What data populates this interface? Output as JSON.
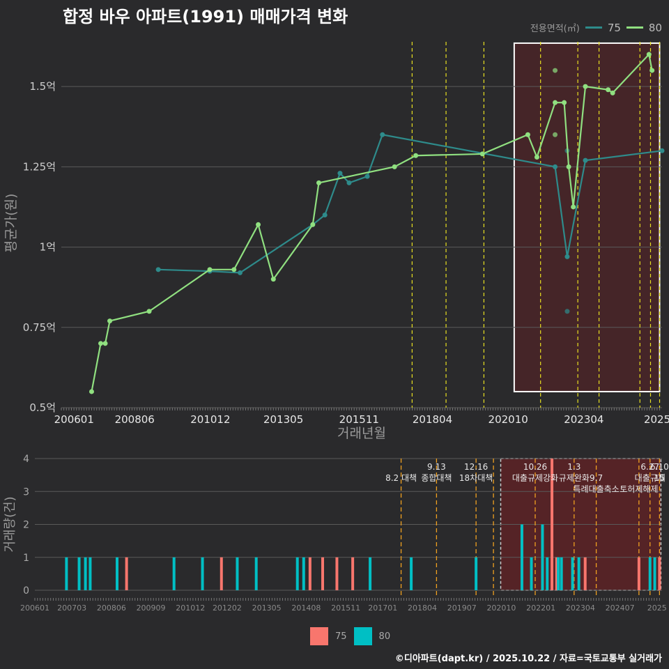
{
  "title": "합정 바우 아파트(1991) 매매가격 변화",
  "source": "©디아파트(dapt.kr) / 2025.10.22 / 자료=국토교통부 실거래가",
  "legend": {
    "title": "전용면적(㎡)",
    "items": [
      {
        "label": "75",
        "color": "#2e8b8b"
      },
      {
        "label": "80",
        "color": "#90e080"
      }
    ],
    "bar_items": [
      {
        "label": "75",
        "color": "#f8766d"
      },
      {
        "label": "80",
        "color": "#00bfc4"
      }
    ]
  },
  "chart_data": [
    {
      "type": "line",
      "title": "합정 바우 아파트(1991) 매매가격 변화",
      "xlabel": "거래년월",
      "ylabel": "평균가(원)",
      "xlim": [
        2006.0,
        2025.83
      ],
      "ylim": [
        0.5,
        1.65
      ],
      "yticks": [
        0.5,
        0.75,
        1.0,
        1.25,
        1.5
      ],
      "ytick_labels": [
        "0.5억",
        "0.75억",
        "1억",
        "1.25억",
        "1.5억"
      ],
      "xticks": [
        2006.42,
        2008.42,
        2010.92,
        2013.33,
        2015.83,
        2018.25,
        2020.75,
        2023.25,
        2025.67
      ],
      "xtick_labels": [
        "200601",
        "200806",
        "201012",
        "201305",
        "201511",
        "201804",
        "202010",
        "202304",
        "2025"
      ],
      "series": [
        {
          "name": "75",
          "color": "#2e8b8b",
          "points": [
            [
              2009.2,
              0.93
            ],
            [
              2010.9,
              0.925
            ],
            [
              2011.9,
              0.92
            ],
            [
              2014.3,
              1.07
            ],
            [
              2014.7,
              1.1
            ],
            [
              2015.2,
              1.23
            ],
            [
              2015.5,
              1.2
            ],
            [
              2016.1,
              1.22
            ],
            [
              2016.6,
              1.35
            ],
            [
              2022.3,
              1.25
            ],
            [
              2022.7,
              0.97
            ],
            [
              2023.3,
              1.27
            ],
            [
              2025.83,
              1.3
            ]
          ],
          "scatter": [
            [
              2022.7,
              1.3
            ],
            [
              2022.7,
              0.8
            ]
          ]
        },
        {
          "name": "80",
          "color": "#90e080",
          "points": [
            [
              2007.0,
              0.55
            ],
            [
              2007.3,
              0.7
            ],
            [
              2007.45,
              0.7
            ],
            [
              2007.6,
              0.77
            ],
            [
              2008.9,
              0.8
            ],
            [
              2010.9,
              0.93
            ],
            [
              2011.7,
              0.93
            ],
            [
              2012.5,
              1.07
            ],
            [
              2013.0,
              0.9
            ],
            [
              2014.3,
              1.07
            ],
            [
              2014.5,
              1.2
            ],
            [
              2017.0,
              1.25
            ],
            [
              2017.7,
              1.285
            ],
            [
              2019.9,
              1.29
            ],
            [
              2021.4,
              1.35
            ],
            [
              2021.7,
              1.28
            ],
            [
              2022.3,
              1.45
            ],
            [
              2022.6,
              1.45
            ],
            [
              2022.75,
              1.25
            ],
            [
              2022.9,
              1.125
            ],
            [
              2023.3,
              1.5
            ],
            [
              2024.05,
              1.49
            ],
            [
              2024.2,
              1.48
            ],
            [
              2025.4,
              1.6
            ],
            [
              2025.5,
              1.55
            ]
          ],
          "scatter": [
            [
              2022.3,
              1.55
            ],
            [
              2022.3,
              1.35
            ]
          ]
        }
      ],
      "policy_lines": [
        2017.58,
        2018.7,
        2019.95,
        2021.82,
        2023.05,
        2023.75,
        2025.1,
        2025.45,
        2025.75
      ],
      "highlight": {
        "x0": 2020.95,
        "x1": 2025.75,
        "y0": 0.55,
        "y1": 1.635
      }
    },
    {
      "type": "bar",
      "xlabel": "",
      "ylabel": "거래량(건)",
      "xlim": [
        2006.0,
        2025.83
      ],
      "ylim": [
        0,
        4
      ],
      "yticks": [
        0,
        1,
        2,
        3,
        4
      ],
      "ytick_labels": [
        "0",
        "1",
        "2",
        "3",
        "4"
      ],
      "xticks": [
        2006.0,
        2007.17,
        2008.42,
        2009.67,
        2010.92,
        2012.08,
        2013.33,
        2014.58,
        2015.83,
        2017.0,
        2018.25,
        2019.5,
        2020.75,
        2022.0,
        2023.25,
        2024.5,
        2025.67
      ],
      "xtick_labels": [
        "200601",
        "200703",
        "200806",
        "200909",
        "201012",
        "201202",
        "201305",
        "201408",
        "201511",
        "201701",
        "201804",
        "201907",
        "202010",
        "202201",
        "202304",
        "202407",
        "2025"
      ],
      "series": [
        {
          "name": "75",
          "color": "#f8766d",
          "bars": [
            [
              2008.9,
              1
            ],
            [
              2011.9,
              1
            ],
            [
              2014.7,
              1
            ],
            [
              2015.1,
              1
            ],
            [
              2015.55,
              1
            ],
            [
              2016.05,
              1
            ],
            [
              2022.35,
              4
            ],
            [
              2022.5,
              1
            ],
            [
              2023.4,
              1
            ],
            [
              2025.1,
              1
            ],
            [
              2025.75,
              1
            ]
          ]
        },
        {
          "name": "80",
          "color": "#00bfc4",
          "bars": [
            [
              2007.0,
              1
            ],
            [
              2007.4,
              1
            ],
            [
              2007.6,
              1
            ],
            [
              2007.75,
              1
            ],
            [
              2008.6,
              1
            ],
            [
              2010.4,
              1
            ],
            [
              2011.3,
              1
            ],
            [
              2012.4,
              1
            ],
            [
              2013.0,
              1
            ],
            [
              2014.3,
              1
            ],
            [
              2014.5,
              1
            ],
            [
              2016.6,
              1
            ],
            [
              2017.9,
              1
            ],
            [
              2019.95,
              1
            ],
            [
              2021.4,
              2
            ],
            [
              2021.7,
              1
            ],
            [
              2022.05,
              2
            ],
            [
              2022.2,
              1
            ],
            [
              2022.55,
              1
            ],
            [
              2022.65,
              1
            ],
            [
              2023.0,
              1
            ],
            [
              2023.2,
              1
            ],
            [
              2025.45,
              1
            ],
            [
              2025.6,
              1
            ]
          ]
        }
      ],
      "policy_lines": [
        2017.58,
        2018.7,
        2019.95,
        2020.5,
        2021.82,
        2023.05,
        2023.75,
        2025.1,
        2025.45,
        2025.75
      ],
      "highlight": {
        "x0": 2020.95,
        "x1": 2025.75,
        "y0": 0,
        "y1": 4
      },
      "annotations": [
        {
          "x": 2017.58,
          "row": 1,
          "text": "8.2 대책"
        },
        {
          "x": 2018.7,
          "row": 0,
          "text": "9.13"
        },
        {
          "x": 2018.7,
          "row": 1,
          "text": "종합대책"
        },
        {
          "x": 2019.95,
          "row": 0,
          "text": "12.16"
        },
        {
          "x": 2019.95,
          "row": 1,
          "text": "18차대책"
        },
        {
          "x": 2021.82,
          "row": 0,
          "text": "10.26"
        },
        {
          "x": 2021.82,
          "row": 1,
          "text": "대출규제강화"
        },
        {
          "x": 2023.05,
          "row": 0,
          "text": "1.3"
        },
        {
          "x": 2023.05,
          "row": 1,
          "text": "규제완화"
        },
        {
          "x": 2023.75,
          "row": 1,
          "text": "9.7"
        },
        {
          "x": 2023.75,
          "row": 2,
          "text": "특례대출축소"
        },
        {
          "x": 2025.1,
          "row": 2,
          "text": "토허제해제"
        },
        {
          "x": 2025.45,
          "row": 0,
          "text": "6.27"
        },
        {
          "x": 2025.45,
          "row": 1,
          "text": "대출규제"
        },
        {
          "x": 2025.75,
          "row": 0,
          "text": "6.10"
        },
        {
          "x": 2025.75,
          "row": 1,
          "text": "15"
        }
      ]
    }
  ]
}
